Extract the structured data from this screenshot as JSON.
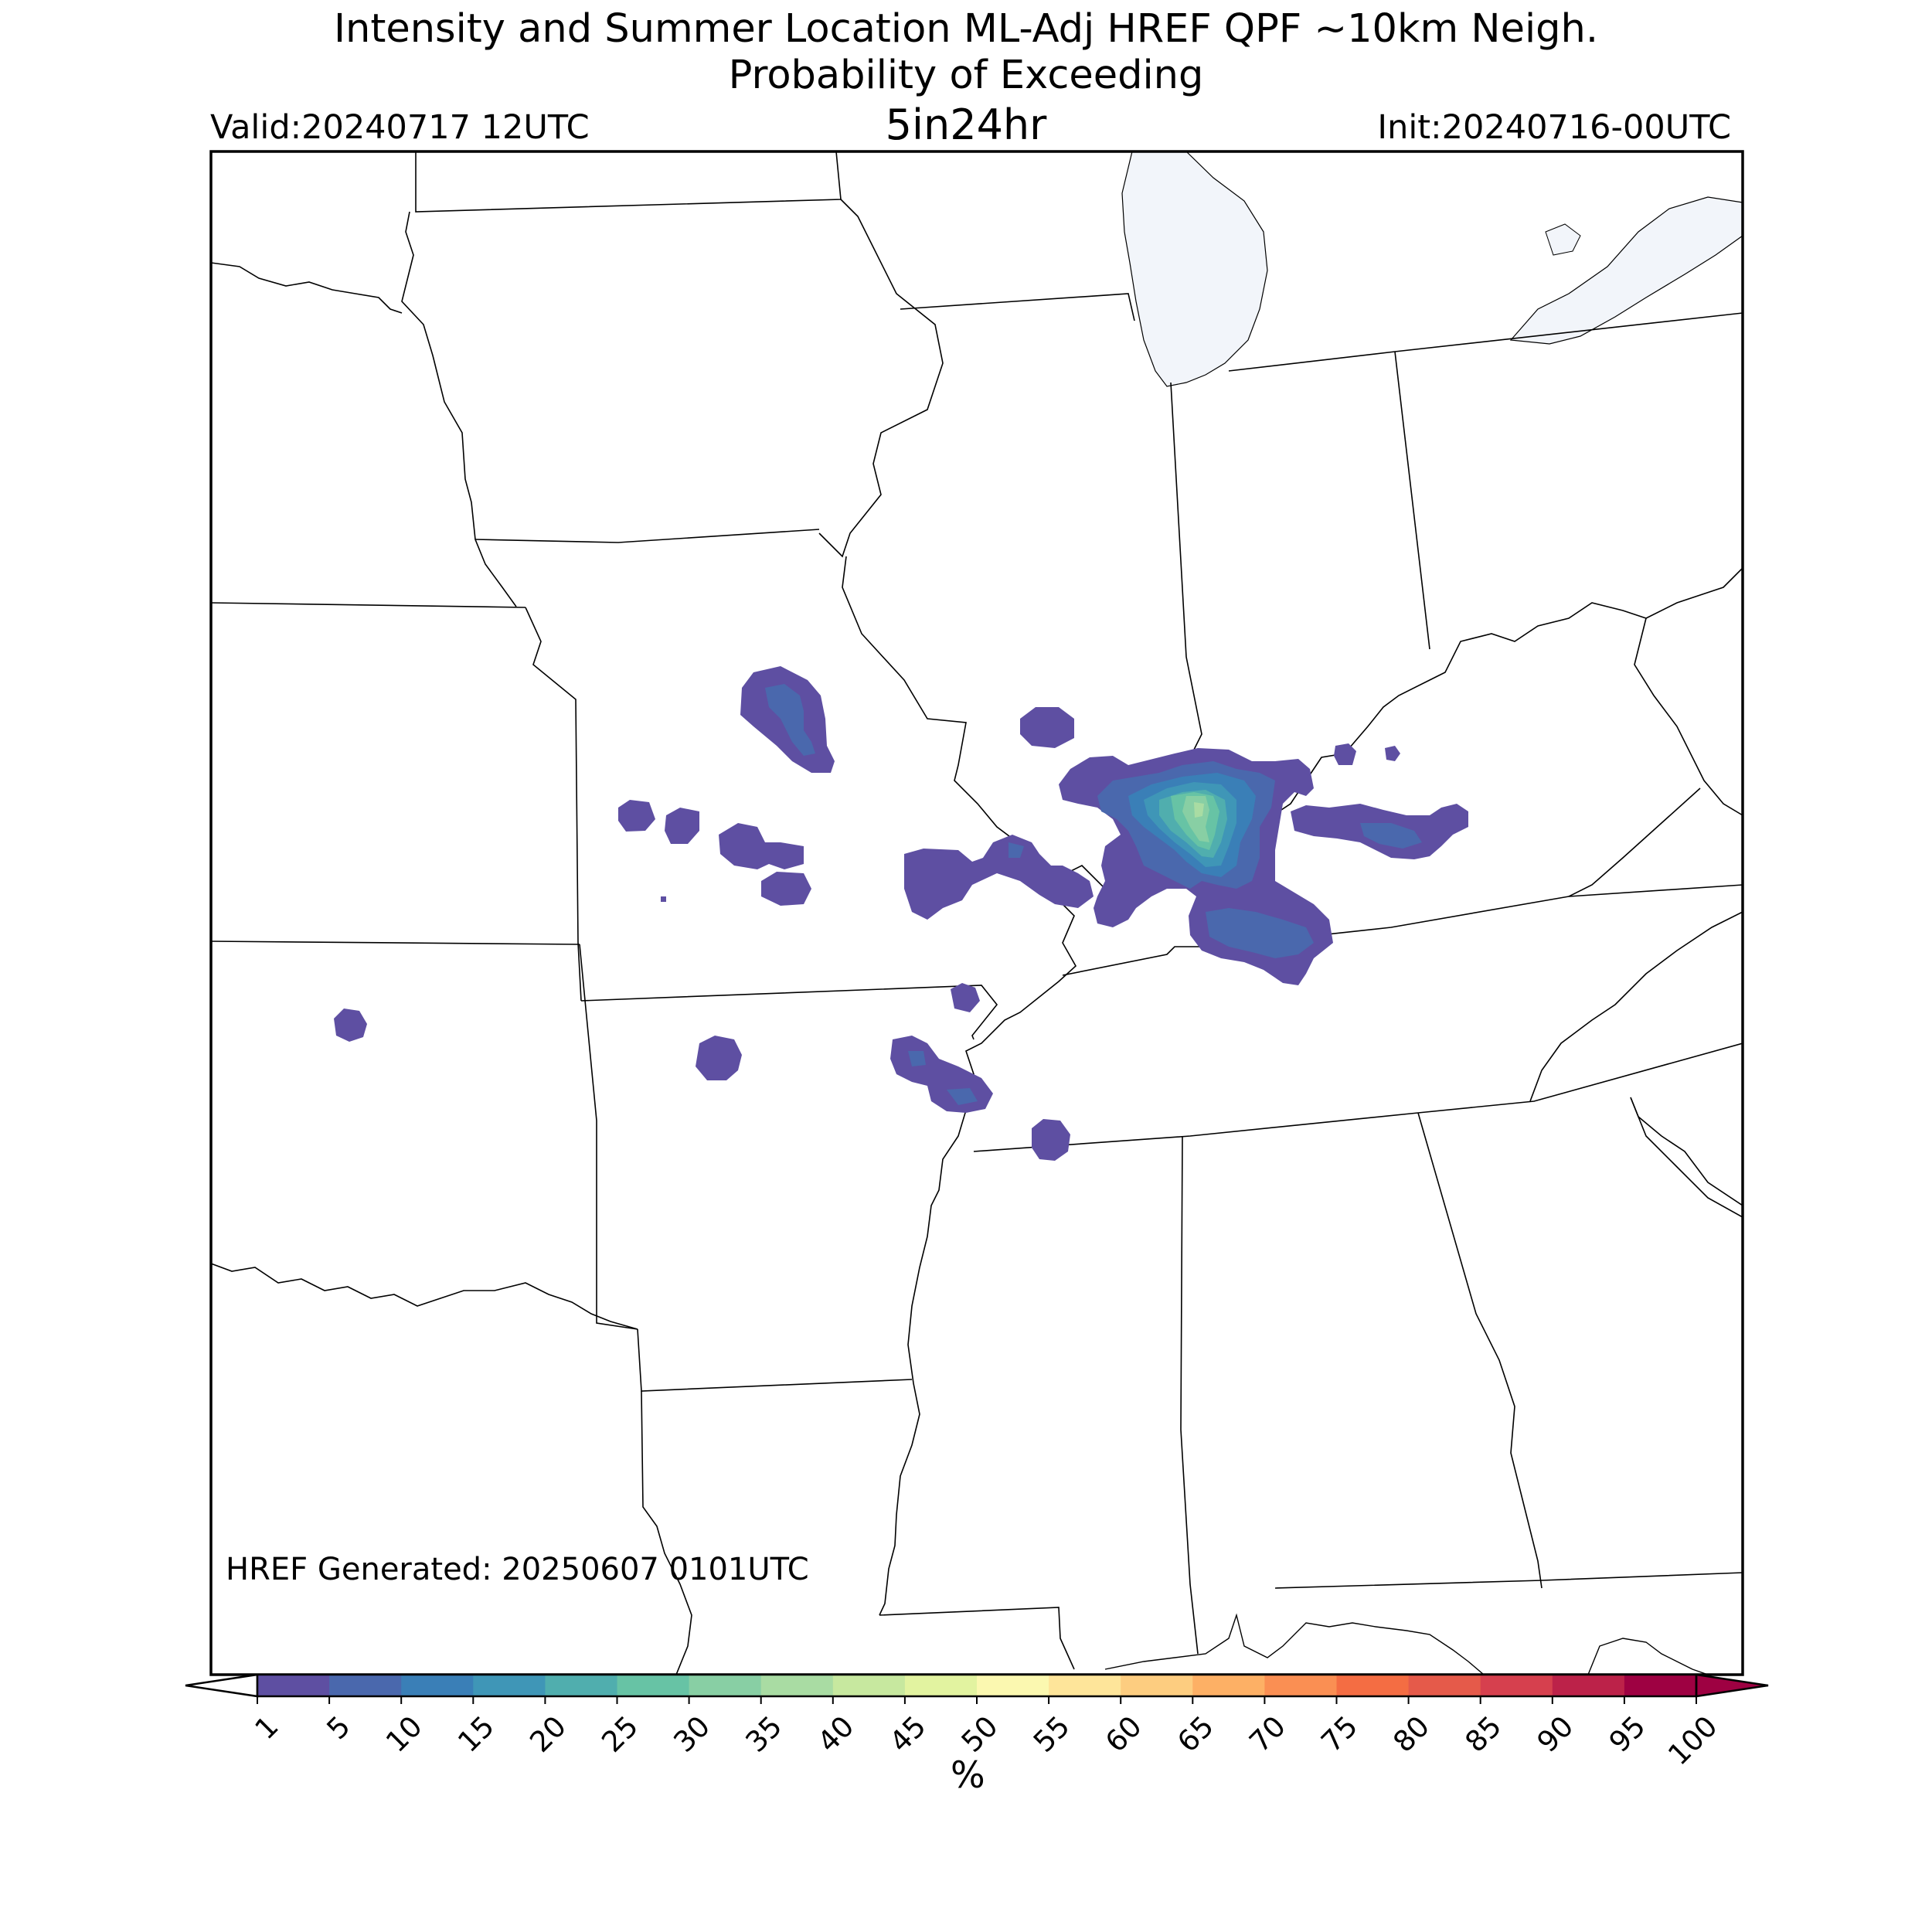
{
  "header": {
    "title_line1": "Intensity and Summer Location ML-Adj HREF QPF ~10km Neigh.",
    "title_line2": "Probability of Exceeding",
    "threshold": "5in24hr",
    "valid": "Valid:20240717 12UTC",
    "init": "Init:20240716-00UTC"
  },
  "footer": {
    "generated": "HREF Generated: 20250607 0101UTC"
  },
  "colorbar": {
    "unit_label": "%",
    "ticks": [
      "1",
      "5",
      "10",
      "15",
      "20",
      "25",
      "30",
      "35",
      "40",
      "45",
      "50",
      "55",
      "60",
      "65",
      "70",
      "75",
      "80",
      "85",
      "90",
      "95",
      "100"
    ],
    "colors": [
      "#5e4fa2",
      "#4a68ad",
      "#3a7fb7",
      "#3f96b7",
      "#50aeae",
      "#67c3a5",
      "#88cfa4",
      "#a9dca3",
      "#c7e89f",
      "#e2f3a0",
      "#fbf8b0",
      "#fee59a",
      "#fdcd80",
      "#fdb065",
      "#fa8f53",
      "#f46d43",
      "#e55a4a",
      "#d6404e",
      "#bc2249",
      "#9e0142"
    ],
    "under_color": "#ffffff",
    "over_color": "#9e0142"
  },
  "map": {
    "region": "Central United States",
    "land_color": "#ffffff",
    "water_color": "#f2f5fa",
    "border_color": "#000000"
  },
  "probability_areas": [
    {
      "name": "southern-illinois-indiana-kentucky",
      "category_max": "30-35"
    },
    {
      "name": "central-missouri-north",
      "category_max": "10-15"
    },
    {
      "name": "east-missouri",
      "category_max": "5-10"
    },
    {
      "name": "west-kentucky",
      "category_max": "5-10"
    },
    {
      "name": "north-arkansas",
      "category_max": "5-10"
    },
    {
      "name": "kansas-isolated",
      "category_max": "1-5"
    }
  ]
}
